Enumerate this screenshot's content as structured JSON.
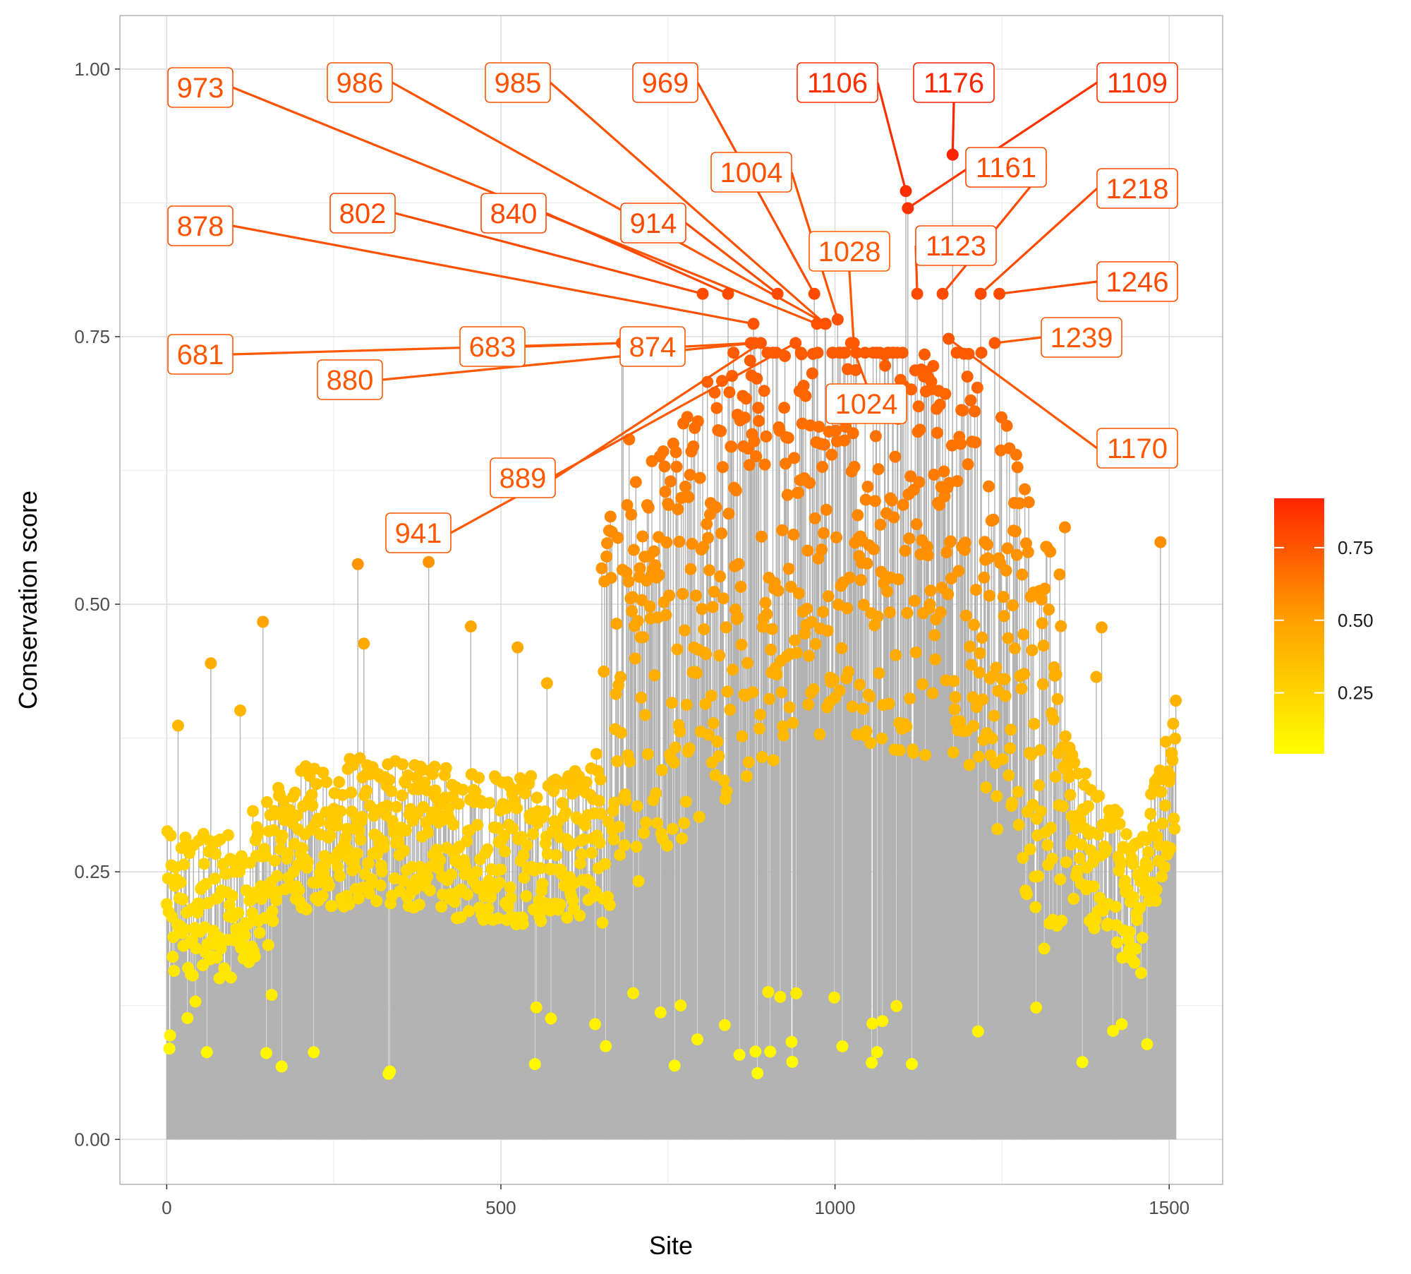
{
  "chart_data": {
    "type": "scatter",
    "subtype": "lollipop",
    "title": "",
    "xlabel": "Site",
    "ylabel": "Conservation score",
    "xlim": [
      -70,
      1580
    ],
    "ylim": [
      -0.042,
      1.05
    ],
    "x_ticks": [
      0,
      500,
      1000,
      1500
    ],
    "x_tick_labels": [
      "0",
      "500",
      "1000",
      "1500"
    ],
    "y_ticks": [
      0.0,
      0.25,
      0.5,
      0.75,
      1.0
    ],
    "y_tick_labels": [
      "0.00",
      "0.25",
      "0.50",
      "0.75",
      "1.00"
    ],
    "grid": true,
    "background": "#ffffff",
    "stem_color": "#b3b3b3",
    "color_scale": {
      "name": "conservation",
      "low_color": "#ffff00",
      "high_color": "#ff2400",
      "min": 0.04,
      "max": 0.92,
      "ticks": [
        0.25,
        0.5,
        0.75
      ],
      "tick_labels": [
        "0.25",
        "0.50",
        "0.75"
      ],
      "legend_position": "right"
    },
    "profile": [
      [
        0,
        0.22
      ],
      [
        100,
        0.22
      ],
      [
        200,
        0.28
      ],
      [
        300,
        0.29
      ],
      [
        400,
        0.28
      ],
      [
        500,
        0.27
      ],
      [
        600,
        0.27
      ],
      [
        640,
        0.29
      ],
      [
        660,
        0.4
      ],
      [
        700,
        0.43
      ],
      [
        800,
        0.5
      ],
      [
        900,
        0.55
      ],
      [
        1000,
        0.58
      ],
      [
        1100,
        0.56
      ],
      [
        1200,
        0.55
      ],
      [
        1250,
        0.48
      ],
      [
        1300,
        0.4
      ],
      [
        1350,
        0.3
      ],
      [
        1400,
        0.25
      ],
      [
        1460,
        0.22
      ],
      [
        1490,
        0.3
      ],
      [
        1510,
        0.35
      ]
    ],
    "series_count_sites": 1510,
    "labeled_points": [
      {
        "label": "973",
        "x": 973,
        "y": 0.762
      },
      {
        "label": "986",
        "x": 986,
        "y": 0.762
      },
      {
        "label": "985",
        "x": 985,
        "y": 0.762
      },
      {
        "label": "969",
        "x": 969,
        "y": 0.79
      },
      {
        "label": "1106",
        "x": 1106,
        "y": 0.886
      },
      {
        "label": "1176",
        "x": 1176,
        "y": 0.92
      },
      {
        "label": "1109",
        "x": 1109,
        "y": 0.87
      },
      {
        "label": "1004",
        "x": 1004,
        "y": 0.766
      },
      {
        "label": "1161",
        "x": 1161,
        "y": 0.79
      },
      {
        "label": "878",
        "x": 878,
        "y": 0.762
      },
      {
        "label": "802",
        "x": 802,
        "y": 0.79
      },
      {
        "label": "840",
        "x": 840,
        "y": 0.79
      },
      {
        "label": "914",
        "x": 914,
        "y": 0.79
      },
      {
        "label": "1218",
        "x": 1218,
        "y": 0.79
      },
      {
        "label": "1028",
        "x": 1028,
        "y": 0.744
      },
      {
        "label": "1123",
        "x": 1123,
        "y": 0.79
      },
      {
        "label": "1246",
        "x": 1246,
        "y": 0.79
      },
      {
        "label": "681",
        "x": 681,
        "y": 0.744
      },
      {
        "label": "683",
        "x": 683,
        "y": 0.744
      },
      {
        "label": "874",
        "x": 874,
        "y": 0.744
      },
      {
        "label": "880",
        "x": 880,
        "y": 0.744
      },
      {
        "label": "1239",
        "x": 1239,
        "y": 0.744
      },
      {
        "label": "1024",
        "x": 1024,
        "y": 0.744
      },
      {
        "label": "1170",
        "x": 1170,
        "y": 0.748
      },
      {
        "label": "889",
        "x": 889,
        "y": 0.744
      },
      {
        "label": "941",
        "x": 941,
        "y": 0.744
      }
    ]
  }
}
